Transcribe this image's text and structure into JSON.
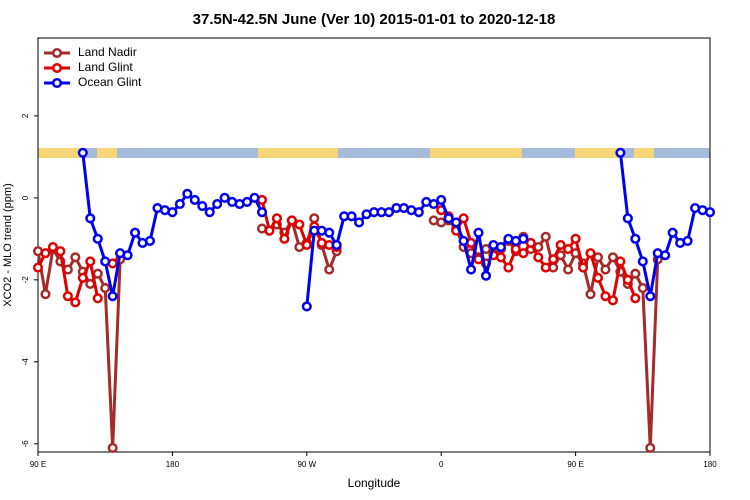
{
  "chart_data": {
    "type": "line",
    "title": "37.5N-42.5N June (Ver 10)   2015-01-01 to 2020-12-18",
    "x_label": "Longitude",
    "y_label": "XCO2 - MLO trend (ppm)",
    "xlim": [
      90,
      540
    ],
    "xticks": [
      {
        "value": 90,
        "label": "90 E"
      },
      180,
      {
        "value": 270,
        "label": "90 W"
      },
      {
        "value": 360,
        "label": "0"
      },
      {
        "value": 450,
        "label": "90 E"
      },
      {
        "value": 540,
        "label": "180"
      }
    ],
    "ylim": [
      -6.2,
      3.9
    ],
    "yticks": [
      -6,
      -4,
      -2,
      0,
      2
    ],
    "legend": "top-left",
    "series": [
      {
        "name": "Land Nadir",
        "color": "#a52a2a",
        "x": [
          90,
          95,
          100,
          105,
          110,
          115,
          120,
          125,
          130,
          135,
          140,
          145,
          150,
          240,
          245,
          250,
          255,
          260,
          265,
          270,
          275,
          280,
          285,
          290,
          295,
          355,
          360,
          365,
          370,
          375,
          380,
          385,
          390,
          395,
          400,
          405,
          410,
          415,
          420,
          425,
          430,
          435,
          440,
          445,
          450,
          455,
          460,
          465,
          470,
          475,
          480,
          485,
          490,
          495,
          500,
          505
        ],
        "values": [
          -1.3,
          -2.35,
          -1.25,
          -1.55,
          -1.75,
          -1.45,
          -1.8,
          -2.1,
          -1.85,
          -2.2,
          -6.1,
          -1.5,
          null,
          -0.75,
          -0.8,
          -0.65,
          -0.85,
          -0.55,
          -1.2,
          -1.1,
          -0.5,
          -1.15,
          -1.75,
          -1.3,
          null,
          -0.55,
          -0.6,
          -0.55,
          -0.75,
          -1.2,
          -1.35,
          -1.45,
          -1.25,
          -1.35,
          -1.25,
          -1.05,
          -1.3,
          -0.95,
          -1.25,
          -1.2,
          -0.95,
          -1.7,
          -1.4,
          -1.75,
          -1.35,
          -1.6,
          -2.35,
          -1.45,
          -1.75,
          -1.45,
          -1.8,
          -2.1,
          -1.85,
          -2.2,
          -6.1,
          -1.5
        ]
      },
      {
        "name": "Land Glint",
        "color": "#e00000",
        "x": [
          90,
          95,
          100,
          105,
          110,
          115,
          120,
          125,
          130,
          135,
          140,
          145,
          240,
          245,
          250,
          255,
          260,
          265,
          270,
          275,
          280,
          285,
          290,
          295,
          360,
          365,
          370,
          375,
          380,
          385,
          390,
          395,
          400,
          405,
          410,
          415,
          420,
          425,
          430,
          435,
          440,
          445,
          450,
          455,
          460,
          465,
          470,
          475,
          480,
          485,
          490
        ],
        "values": [
          -1.7,
          -1.35,
          -1.2,
          -1.3,
          -2.4,
          -2.55,
          -1.95,
          -1.55,
          -2.45,
          null,
          -1.6,
          null,
          -0.05,
          -0.8,
          -0.5,
          -1.0,
          -0.55,
          -0.65,
          -1.15,
          -0.7,
          -1.1,
          -1.15,
          -1.2,
          null,
          -0.3,
          -0.45,
          -0.8,
          -0.5,
          -1.1,
          -1.5,
          -1.6,
          -1.4,
          -1.45,
          -1.7,
          -1.25,
          -1.35,
          -1.1,
          -1.45,
          -1.7,
          -1.5,
          -1.15,
          -1.25,
          -1.0,
          -1.7,
          -1.35,
          -1.95,
          -2.4,
          -2.5,
          -1.55,
          -2.0,
          -2.45
        ]
      },
      {
        "name": "Ocean Glint",
        "color": "#0000ee",
        "x": [
          120,
          125,
          130,
          135,
          140,
          145,
          150,
          155,
          160,
          165,
          170,
          175,
          180,
          185,
          190,
          195,
          200,
          205,
          210,
          215,
          220,
          225,
          230,
          235,
          240,
          245,
          270,
          275,
          280,
          285,
          290,
          295,
          300,
          305,
          310,
          315,
          320,
          325,
          330,
          335,
          340,
          345,
          350,
          355,
          360,
          365,
          370,
          375,
          380,
          385,
          390,
          395,
          400,
          405,
          410,
          415,
          420,
          480,
          485,
          490,
          495,
          500,
          505,
          510,
          515,
          520,
          525,
          530,
          535,
          540
        ],
        "values": [
          1.1,
          -0.5,
          -1.0,
          -1.55,
          -2.4,
          -1.35,
          -1.4,
          -0.85,
          -1.1,
          -1.05,
          -0.25,
          -0.3,
          -0.35,
          -0.15,
          0.1,
          -0.05,
          -0.2,
          -0.35,
          -0.15,
          0.0,
          -0.1,
          -0.15,
          -0.1,
          0.0,
          -0.35,
          null,
          -2.65,
          -0.8,
          -0.8,
          -0.85,
          -1.15,
          -0.45,
          -0.45,
          -0.6,
          -0.4,
          -0.35,
          -0.35,
          -0.35,
          -0.25,
          -0.25,
          -0.3,
          -0.35,
          -0.1,
          -0.15,
          -0.05,
          -0.5,
          -0.6,
          -1.05,
          -1.75,
          -0.85,
          -1.9,
          -1.15,
          -1.2,
          -1.0,
          -1.05,
          -1.0,
          null,
          1.1,
          -0.5,
          -1.0,
          -1.55,
          -2.4,
          -1.35,
          -1.4,
          -0.85,
          -1.1,
          -1.05,
          -0.25,
          -0.3,
          -0.35
        ]
      }
    ]
  }
}
